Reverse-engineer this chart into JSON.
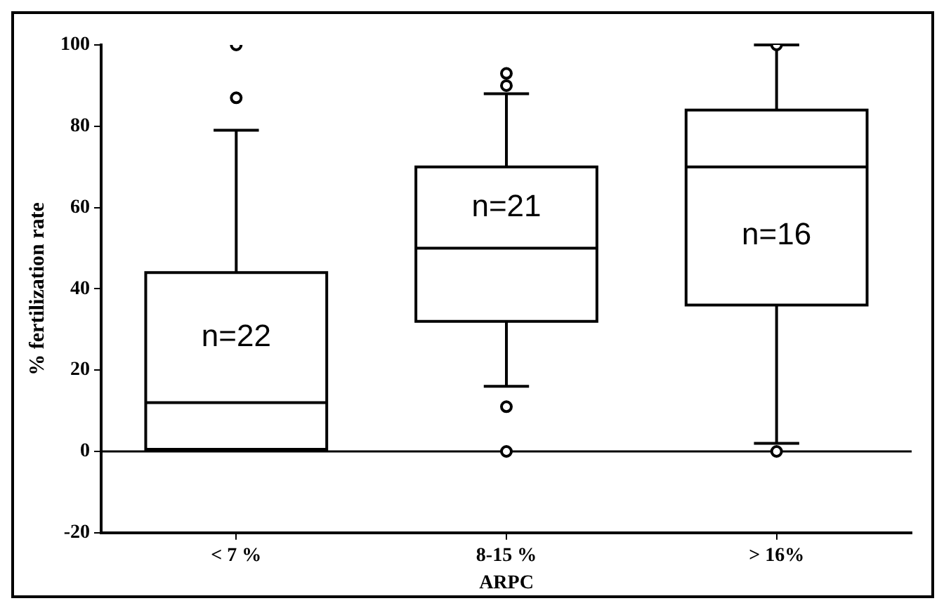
{
  "chart_data": {
    "type": "box",
    "xlabel": "ARPC",
    "ylabel": "% fertilization rate",
    "categories": [
      "< 7 %",
      "8-15 %",
      "> 16%"
    ],
    "boxes": [
      {
        "low": 0.5,
        "q1": 0.5,
        "median": 12,
        "q3": 44,
        "high": 79,
        "outliers": [
          100,
          87
        ]
      },
      {
        "low": 16,
        "q1": 32,
        "median": 50,
        "q3": 70,
        "high": 88,
        "outliers": [
          93,
          90,
          11,
          0
        ]
      },
      {
        "low": 2,
        "q1": 36,
        "median": 70,
        "q3": 84,
        "high": 100,
        "outliers": [
          100,
          0
        ]
      }
    ],
    "ylim": [
      -20,
      100
    ],
    "yticks": [
      -20,
      0,
      20,
      40,
      60,
      80,
      100
    ],
    "grid": false,
    "ref_lines": [
      {
        "axis": "y",
        "value": 0
      }
    ],
    "annotations": [
      "n=22",
      "n=21",
      "n=16"
    ]
  }
}
